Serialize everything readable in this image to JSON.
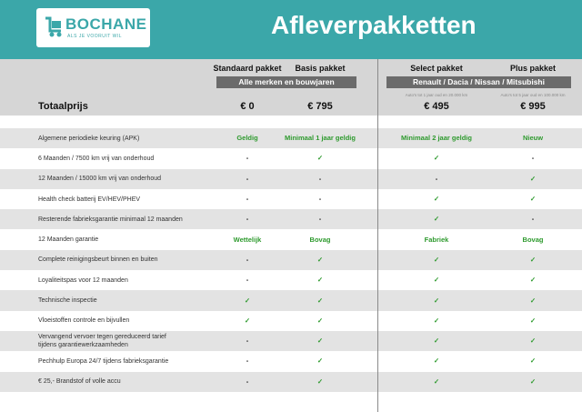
{
  "header": {
    "logo": {
      "name": "BOCHANE",
      "tagline": "ALS JE VOORUIT WIL"
    },
    "title": "Afleverpakketten"
  },
  "packages": [
    {
      "name": "Standaard pakket",
      "price": "€ 0"
    },
    {
      "name": "Basis pakket",
      "price": "€ 795"
    },
    {
      "name": "Select pakket",
      "price": "€ 495",
      "note": "Auto's tot 1 jaar oud en 20.000 km"
    },
    {
      "name": "Plus pakket",
      "price": "€ 995",
      "note": "Auto's tot 5 jaar oud en 100.000 km"
    }
  ],
  "groups": [
    {
      "label": "Alle merken en bouwjaren"
    },
    {
      "label": "Renault / Dacia / Nissan / Mitsubishi"
    }
  ],
  "total": {
    "label": "Totaalprijs"
  },
  "rows": [
    {
      "label": "Algemene periodieke keuring (APK)",
      "cells": [
        "Geldig",
        "Minimaal 1 jaar geldig",
        "Minimaal 2 jaar geldig",
        "Nieuw"
      ]
    },
    {
      "label": "6 Maanden / 7500 km vrij van onderhoud",
      "cells": [
        "-",
        "✓",
        "✓",
        "-"
      ]
    },
    {
      "label": "12 Maanden / 15000 km vrij van onderhoud",
      "cells": [
        "-",
        "-",
        "-",
        "✓"
      ]
    },
    {
      "label": "Health check batterij EV/HEV/PHEV",
      "cells": [
        "-",
        "-",
        "✓",
        "✓"
      ]
    },
    {
      "label": "Resterende fabrieksgarantie minimaal 12 maanden",
      "cells": [
        "-",
        "-",
        "✓",
        "-"
      ]
    },
    {
      "label": "12 Maanden  garantie",
      "cells": [
        "Wettelijk",
        "Bovag",
        "Fabriek",
        "Bovag"
      ]
    },
    {
      "label": "Complete reinigingsbeurt binnen en buiten",
      "cells": [
        "-",
        "✓",
        "✓",
        "✓"
      ]
    },
    {
      "label": "Loyaliteitspas voor 12 maanden",
      "cells": [
        "-",
        "✓",
        "✓",
        "✓"
      ]
    },
    {
      "label": "Technische inspectie",
      "cells": [
        "✓",
        "✓",
        "✓",
        "✓"
      ]
    },
    {
      "label": "Vloeistoffen controle en bijvullen",
      "cells": [
        "✓",
        "✓",
        "✓",
        "✓"
      ]
    },
    {
      "label": "Vervangend vervoer tegen gereduceerd tarief\ntijdens garantiewerkzaamheden",
      "cells": [
        "-",
        "✓",
        "✓",
        "✓"
      ]
    },
    {
      "label": "Pechhulp Europa 24/7 tijdens fabrieksgarantie",
      "cells": [
        "-",
        "✓",
        "✓",
        "✓"
      ]
    },
    {
      "label": "€ 25,- Brandstof of  volle accu",
      "cells": [
        "-",
        "✓",
        "✓",
        "✓"
      ]
    }
  ]
}
